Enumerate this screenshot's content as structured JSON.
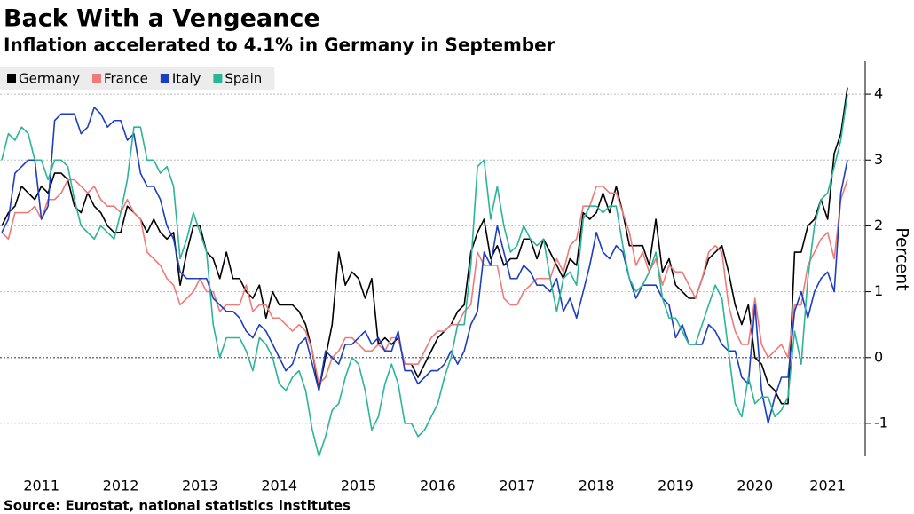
{
  "chart_data": {
    "type": "line",
    "title": "Back With a Vengeance",
    "subtitle": "Inflation accelerated to 4.1% in Germany in September",
    "source": "Source: Eurostat, national statistics institutes",
    "ylabel": "Percent",
    "ylim": [
      -1.5,
      4.5
    ],
    "yticks": [
      -1,
      0,
      1,
      2,
      3,
      4
    ],
    "grid": true,
    "legend": "top-left",
    "categories": [
      null,
      null,
      null,
      null,
      null,
      null,
      "2011",
      null,
      null,
      null,
      null,
      null,
      null,
      null,
      null,
      null,
      null,
      null,
      "2012",
      null,
      null,
      null,
      null,
      null,
      null,
      null,
      null,
      null,
      null,
      null,
      "2013",
      null,
      null,
      null,
      null,
      null,
      null,
      null,
      null,
      null,
      null,
      null,
      "2014",
      null,
      null,
      null,
      null,
      null,
      null,
      null,
      null,
      null,
      null,
      null,
      "2015",
      null,
      null,
      null,
      null,
      null,
      null,
      null,
      null,
      null,
      null,
      null,
      "2016",
      null,
      null,
      null,
      null,
      null,
      null,
      null,
      null,
      null,
      null,
      null,
      "2017",
      null,
      null,
      null,
      null,
      null,
      null,
      null,
      null,
      null,
      null,
      null,
      "2018",
      null,
      null,
      null,
      null,
      null,
      null,
      null,
      null,
      null,
      null,
      null,
      "2019",
      null,
      null,
      null,
      null,
      null,
      null,
      null,
      null,
      null,
      null,
      null,
      "2020",
      null,
      null,
      null,
      null,
      null,
      null,
      null,
      null,
      null,
      null,
      "2021",
      null,
      null,
      null
    ],
    "series": [
      {
        "name": "Germany",
        "color": "#000000",
        "values": [
          2.0,
          2.2,
          2.3,
          2.6,
          2.5,
          2.4,
          2.6,
          2.5,
          2.8,
          2.8,
          2.7,
          2.3,
          2.2,
          2.5,
          2.3,
          2.2,
          2.0,
          1.9,
          1.9,
          2.3,
          2.2,
          2.1,
          1.9,
          2.1,
          1.9,
          1.8,
          1.9,
          1.1,
          1.6,
          2.0,
          2.0,
          1.6,
          1.5,
          1.2,
          1.6,
          1.2,
          1.2,
          1.0,
          0.9,
          1.1,
          0.6,
          1.0,
          0.8,
          0.8,
          0.8,
          0.7,
          0.5,
          0.1,
          -0.5,
          0.0,
          0.5,
          1.6,
          1.1,
          1.3,
          1.2,
          0.9,
          1.2,
          0.2,
          0.3,
          0.2,
          0.3,
          -0.1,
          -0.1,
          -0.3,
          -0.1,
          0.1,
          0.3,
          0.4,
          0.5,
          0.7,
          0.8,
          1.6,
          1.9,
          2.1,
          1.5,
          1.7,
          1.4,
          1.5,
          1.5,
          1.8,
          1.8,
          1.5,
          1.8,
          1.6,
          1.4,
          1.2,
          1.5,
          1.4,
          2.2,
          2.1,
          2.2,
          2.5,
          2.2,
          2.6,
          2.2,
          1.7,
          1.7,
          1.7,
          1.4,
          2.1,
          1.3,
          1.5,
          1.1,
          1.0,
          0.9,
          0.9,
          1.2,
          1.5,
          1.6,
          1.7,
          1.3,
          0.8,
          0.5,
          0.8,
          0.0,
          -0.1,
          -0.4,
          -0.5,
          -0.7,
          -0.7,
          1.6,
          1.6,
          2.0,
          2.1,
          2.4,
          2.1,
          3.1,
          3.4,
          4.1
        ]
      },
      {
        "name": "France",
        "color": "#ee7b78",
        "values": [
          1.9,
          1.8,
          2.2,
          2.2,
          2.2,
          2.3,
          2.1,
          2.4,
          2.4,
          2.5,
          2.7,
          2.7,
          2.6,
          2.5,
          2.6,
          2.4,
          2.3,
          2.3,
          2.2,
          2.4,
          2.2,
          2.1,
          1.6,
          1.5,
          1.4,
          1.2,
          1.1,
          0.8,
          0.9,
          1.0,
          1.2,
          1.0,
          1.0,
          0.7,
          0.8,
          0.8,
          0.8,
          1.1,
          0.7,
          0.8,
          0.8,
          0.6,
          0.6,
          0.5,
          0.4,
          0.5,
          0.4,
          0.1,
          -0.4,
          -0.3,
          0.0,
          0.1,
          0.3,
          0.3,
          0.2,
          0.1,
          0.1,
          0.2,
          0.1,
          0.3,
          0.3,
          -0.1,
          -0.1,
          -0.1,
          0.1,
          0.3,
          0.4,
          0.4,
          0.5,
          0.5,
          0.7,
          0.8,
          1.6,
          1.4,
          1.4,
          1.4,
          0.9,
          0.8,
          0.8,
          1.0,
          1.1,
          1.2,
          1.2,
          1.2,
          1.5,
          1.3,
          1.7,
          1.8,
          2.3,
          2.3,
          2.6,
          2.6,
          2.5,
          2.5,
          2.2,
          1.9,
          1.4,
          1.6,
          1.3,
          1.5,
          1.1,
          1.4,
          1.3,
          1.3,
          1.1,
          0.9,
          1.2,
          1.6,
          1.7,
          1.6,
          0.8,
          0.4,
          0.2,
          0.2,
          0.9,
          0.2,
          0.0,
          0.1,
          0.2,
          0.0,
          0.8,
          0.8,
          1.4,
          1.6,
          1.8,
          1.9,
          1.5,
          2.4,
          2.7
        ]
      },
      {
        "name": "Italy",
        "color": "#1d3fbf",
        "values": [
          1.9,
          2.1,
          2.8,
          2.9,
          3.0,
          3.0,
          2.1,
          2.3,
          3.6,
          3.7,
          3.7,
          3.7,
          3.4,
          3.5,
          3.8,
          3.7,
          3.5,
          3.6,
          3.6,
          3.3,
          3.4,
          2.8,
          2.6,
          2.6,
          2.4,
          2.0,
          1.8,
          1.3,
          1.2,
          1.2,
          1.2,
          1.2,
          0.9,
          0.8,
          0.7,
          0.7,
          0.6,
          0.4,
          0.3,
          0.5,
          0.4,
          0.2,
          0.0,
          -0.2,
          -0.1,
          0.2,
          0.3,
          -0.1,
          -0.5,
          0.1,
          0.0,
          -0.1,
          0.2,
          0.2,
          0.3,
          0.4,
          0.2,
          0.3,
          0.1,
          0.1,
          0.4,
          -0.2,
          -0.2,
          -0.4,
          -0.3,
          -0.2,
          -0.2,
          -0.1,
          0.1,
          -0.1,
          0.1,
          0.5,
          0.7,
          1.6,
          1.4,
          2.0,
          1.6,
          1.2,
          1.2,
          1.4,
          1.3,
          1.1,
          1.1,
          1.0,
          1.2,
          0.7,
          0.9,
          0.6,
          1.0,
          1.4,
          1.9,
          1.6,
          1.5,
          1.7,
          1.6,
          1.2,
          0.9,
          1.1,
          1.1,
          1.1,
          0.9,
          0.8,
          0.3,
          0.5,
          0.2,
          0.2,
          0.2,
          0.5,
          0.4,
          0.2,
          0.1,
          0.1,
          -0.3,
          -0.4,
          0.8,
          -0.5,
          -1.0,
          -0.6,
          -0.3,
          -0.3,
          0.7,
          1.0,
          0.6,
          1.0,
          1.2,
          1.3,
          1.0,
          2.5,
          3.0
        ]
      },
      {
        "name": "Spain",
        "color": "#2cb595",
        "values": [
          3.0,
          3.4,
          3.3,
          3.5,
          3.4,
          3.0,
          3.0,
          2.7,
          3.0,
          3.0,
          2.9,
          2.4,
          2.0,
          1.9,
          1.8,
          2.0,
          1.9,
          1.8,
          2.2,
          2.7,
          3.5,
          3.5,
          3.0,
          3.0,
          2.8,
          2.9,
          2.6,
          1.5,
          1.8,
          2.2,
          1.9,
          1.6,
          0.5,
          0.0,
          0.3,
          0.3,
          0.3,
          0.1,
          -0.2,
          0.3,
          0.2,
          0.0,
          -0.4,
          -0.5,
          -0.3,
          -0.2,
          -0.5,
          -1.1,
          -1.5,
          -1.2,
          -0.8,
          -0.7,
          -0.3,
          0.0,
          -0.1,
          -0.5,
          -1.1,
          -0.9,
          -0.4,
          -0.1,
          -0.4,
          -1.0,
          -1.0,
          -1.2,
          -1.1,
          -0.9,
          -0.7,
          -0.3,
          0.0,
          0.5,
          0.5,
          1.4,
          2.9,
          3.0,
          2.1,
          2.6,
          2.0,
          1.6,
          1.7,
          2.0,
          1.8,
          1.7,
          1.8,
          1.2,
          0.7,
          1.2,
          1.3,
          1.1,
          2.1,
          2.3,
          2.3,
          2.2,
          2.3,
          2.3,
          1.7,
          1.2,
          1.0,
          1.1,
          1.3,
          1.6,
          0.9,
          0.6,
          0.6,
          0.4,
          0.2,
          0.2,
          0.5,
          0.8,
          1.1,
          0.9,
          0.1,
          -0.7,
          -0.9,
          -0.3,
          -0.7,
          -0.6,
          -0.6,
          -0.9,
          -0.8,
          -0.6,
          0.4,
          -0.1,
          1.2,
          2.0,
          2.4,
          2.5,
          2.9,
          3.3,
          4.0
        ]
      }
    ]
  }
}
